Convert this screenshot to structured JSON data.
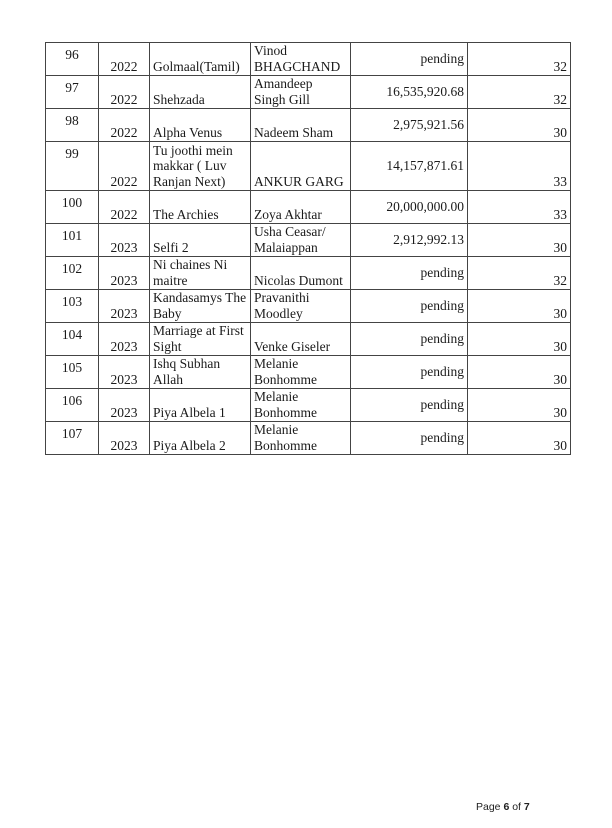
{
  "table": {
    "rows": [
      {
        "no": "96",
        "year": "2022",
        "title": "Golmaal(Tamil)",
        "producer": "Vinod BHAGCHAND",
        "amount": "pending",
        "value": "32"
      },
      {
        "no": "97",
        "year": "2022",
        "title": "Shehzada",
        "producer": "Amandeep Singh Gill",
        "amount": "16,535,920.68",
        "value": "32"
      },
      {
        "no": "98",
        "year": "2022",
        "title": "Alpha Venus",
        "producer": "Nadeem Sham",
        "amount": "2,975,921.56",
        "value": "30"
      },
      {
        "no": "99",
        "year": "2022",
        "title": "Tu joothi mein makkar ( Luv Ranjan Next)",
        "producer": "ANKUR GARG",
        "amount": "14,157,871.61",
        "value": "33"
      },
      {
        "no": "100",
        "year": "2022",
        "title": "The Archies",
        "producer": "Zoya Akhtar",
        "amount": "20,000,000.00",
        "value": "33"
      },
      {
        "no": "101",
        "year": "2023",
        "title": "Selfi 2",
        "producer": "Usha Ceasar/ Malaiappan",
        "amount": "2,912,992.13",
        "value": "30"
      },
      {
        "no": "102",
        "year": "2023",
        "title": "Ni chaines Ni maitre",
        "producer": "Nicolas Dumont",
        "amount": "pending",
        "value": "32"
      },
      {
        "no": "103",
        "year": "2023",
        "title": "Kandasamys The Baby",
        "producer": "Pravanithi Moodley",
        "amount": "pending",
        "value": "30"
      },
      {
        "no": "104",
        "year": "2023",
        "title": "Marriage at First Sight",
        "producer": "Venke Giseler",
        "amount": "pending",
        "value": "30"
      },
      {
        "no": "105",
        "year": "2023",
        "title": "Ishq Subhan Allah",
        "producer": "Melanie Bonhomme",
        "amount": "pending",
        "value": "30"
      },
      {
        "no": "106",
        "year": "2023",
        "title": "Piya Albela 1",
        "producer": "Melanie Bonhomme",
        "amount": "pending",
        "value": "30"
      },
      {
        "no": "107",
        "year": "2023",
        "title": "Piya Albela 2",
        "producer": "Melanie Bonhomme",
        "amount": "pending",
        "value": "30"
      }
    ]
  },
  "footer": {
    "prefix": "Page",
    "current": "6",
    "of": "of",
    "total": "7"
  }
}
